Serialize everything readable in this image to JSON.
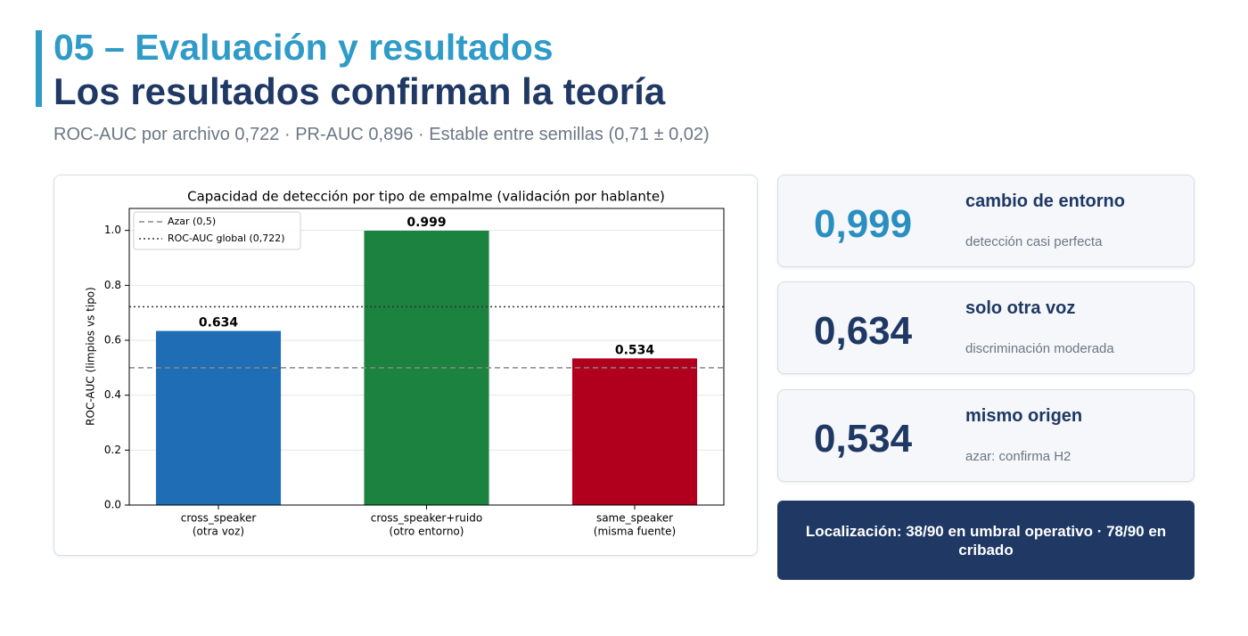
{
  "header": {
    "section": "05 – Evaluación y resultados",
    "title": "Los resultados confirman la teoría",
    "subtitle": "ROC-AUC por archivo 0,722 · PR-AUC 0,896 · Estable entre semillas (0,71 ± 0,02)"
  },
  "chart_data": {
    "type": "bar",
    "title": "Capacidad de detección por tipo de empalme (validación por hablante)",
    "y_label": "ROC-AUC (limpios vs tipo)",
    "categories": [
      [
        "cross_speaker",
        "(otra voz)"
      ],
      [
        "cross_speaker+ruido",
        "(otro entorno)"
      ],
      [
        "same_speaker",
        "(misma fuente)"
      ]
    ],
    "values": [
      0.634,
      0.999,
      0.534
    ],
    "colors": [
      "#1f6db4",
      "#1b833f",
      "#b0001e"
    ],
    "ylim": [
      0,
      1.08
    ],
    "yticks": [
      {
        "value": 0,
        "label": "0.0"
      },
      0.2,
      0.4,
      0.6,
      0.8,
      {
        "value": 1,
        "label": "1.0"
      }
    ],
    "grid": true,
    "legend": "upper left",
    "reference_lines": [
      {
        "name": "Azar (0,5)",
        "value": 0.5,
        "color": "#888888",
        "style": "dashed"
      },
      {
        "name": "ROC-AUC global (0,722)",
        "value": 0.722,
        "color": "#333333",
        "style": "dotted"
      }
    ]
  },
  "cards": [
    {
      "value": "0,999",
      "title": "cambio de entorno",
      "note": "detección casi perfecta"
    },
    {
      "value": "0,634",
      "title": "solo otra voz",
      "note": "discriminación moderada"
    },
    {
      "value": "0,534",
      "title": "mismo origen",
      "note": "azar: confirma H2"
    }
  ],
  "footer": "Localización: 38/90 en umbral operativo · 78/90 en cribado"
}
